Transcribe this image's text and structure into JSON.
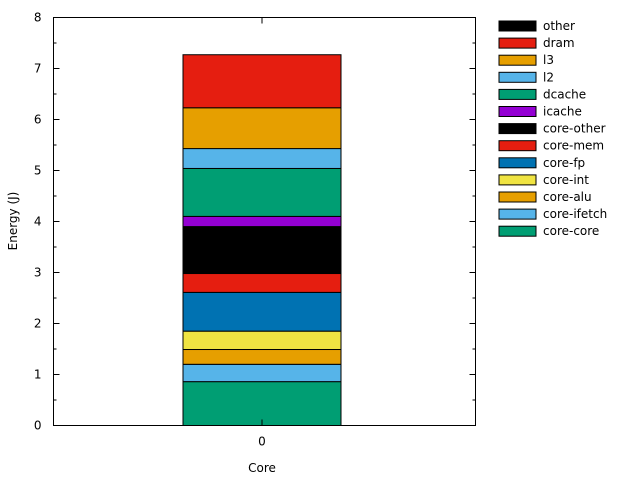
{
  "chart_data": {
    "type": "bar",
    "stacked": true,
    "categories": [
      "0"
    ],
    "xlabel": "Core",
    "ylabel": "Energy (J)",
    "ylim": [
      0,
      8
    ],
    "yticks": [
      0,
      1,
      2,
      3,
      4,
      5,
      6,
      7,
      8
    ],
    "grid": false,
    "legend_position": "top-right",
    "series": [
      {
        "name": "core-core",
        "color": "#009e73",
        "values": [
          0.86
        ]
      },
      {
        "name": "core-ifetch",
        "color": "#56b4e9",
        "values": [
          0.34
        ]
      },
      {
        "name": "core-alu",
        "color": "#e69f00",
        "values": [
          0.29
        ]
      },
      {
        "name": "core-int",
        "color": "#f0e442",
        "values": [
          0.36
        ]
      },
      {
        "name": "core-fp",
        "color": "#0072b2",
        "values": [
          0.76
        ]
      },
      {
        "name": "core-mem",
        "color": "#e51e10",
        "values": [
          0.37
        ]
      },
      {
        "name": "core-other",
        "color": "#000000",
        "values": [
          0.92
        ]
      },
      {
        "name": "icache",
        "color": "#9400d3",
        "values": [
          0.2
        ]
      },
      {
        "name": "dcache",
        "color": "#009e73",
        "values": [
          0.94
        ]
      },
      {
        "name": "l2",
        "color": "#56b4e9",
        "values": [
          0.39
        ]
      },
      {
        "name": "l3",
        "color": "#e69f00",
        "values": [
          0.8
        ]
      },
      {
        "name": "dram",
        "color": "#e51e10",
        "values": [
          1.04
        ]
      },
      {
        "name": "other",
        "color": "#000000",
        "values": [
          0.0
        ]
      }
    ]
  }
}
